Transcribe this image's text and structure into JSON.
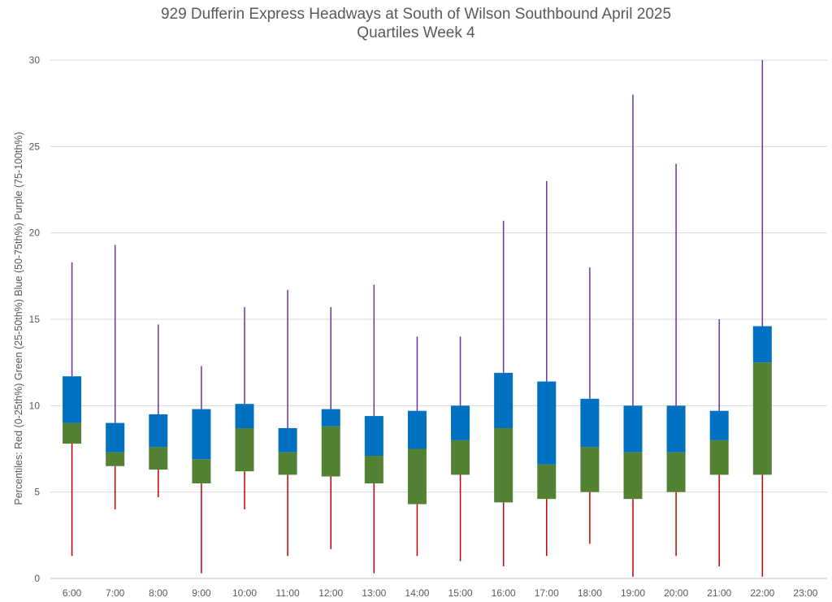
{
  "chart_data": {
    "type": "box",
    "title": "929 Dufferin Express Headways at South of Wilson Southbound April 2025",
    "subtitle": "Quartiles Week 4",
    "ylabel": "Percentiles:  Red (0-25th%)  Green (25-50th%)  Blue (50-75th%)  Purple (75-100th%)",
    "ylim": [
      0,
      30
    ],
    "yticks": [
      "0",
      "5",
      "10",
      "15",
      "20",
      "25",
      "30"
    ],
    "grid": true,
    "colors": {
      "min_to_q1": "#c00000",
      "q1_to_median": "#548235",
      "median_to_q3": "#0070c0",
      "q3_to_max": "#7030a0"
    },
    "categories": [
      "6:00",
      "7:00",
      "8:00",
      "9:00",
      "10:00",
      "11:00",
      "12:00",
      "13:00",
      "14:00",
      "15:00",
      "16:00",
      "17:00",
      "18:00",
      "19:00",
      "20:00",
      "21:00",
      "22:00",
      "23:00"
    ],
    "series": [
      {
        "min": 1.3,
        "q1": 7.8,
        "median": 9.0,
        "q3": 11.7,
        "max": 18.3
      },
      {
        "min": 4.0,
        "q1": 6.5,
        "median": 7.3,
        "q3": 9.0,
        "max": 19.3
      },
      {
        "min": 4.7,
        "q1": 6.3,
        "median": 7.6,
        "q3": 9.5,
        "max": 14.7
      },
      {
        "min": 0.3,
        "q1": 5.5,
        "median": 6.9,
        "q3": 9.8,
        "max": 12.3
      },
      {
        "min": 4.0,
        "q1": 6.2,
        "median": 8.7,
        "q3": 10.1,
        "max": 15.7
      },
      {
        "min": 1.3,
        "q1": 6.0,
        "median": 7.3,
        "q3": 8.7,
        "max": 16.7
      },
      {
        "min": 1.7,
        "q1": 5.9,
        "median": 8.8,
        "q3": 9.8,
        "max": 15.7
      },
      {
        "min": 0.3,
        "q1": 5.5,
        "median": 7.1,
        "q3": 9.4,
        "max": 17.0
      },
      {
        "min": 1.3,
        "q1": 4.3,
        "median": 7.5,
        "q3": 9.7,
        "max": 14.0
      },
      {
        "min": 1.0,
        "q1": 6.0,
        "median": 8.0,
        "q3": 10.0,
        "max": 14.0
      },
      {
        "min": 0.7,
        "q1": 4.4,
        "median": 8.7,
        "q3": 11.9,
        "max": 20.7
      },
      {
        "min": 1.3,
        "q1": 4.6,
        "median": 6.6,
        "q3": 11.4,
        "max": 23.0
      },
      {
        "min": 2.0,
        "q1": 5.0,
        "median": 7.6,
        "q3": 10.4,
        "max": 18.0
      },
      {
        "min": 0.1,
        "q1": 4.6,
        "median": 7.3,
        "q3": 10.0,
        "max": 28.0
      },
      {
        "min": 1.3,
        "q1": 5.0,
        "median": 7.3,
        "q3": 10.0,
        "max": 24.0
      },
      {
        "min": 0.7,
        "q1": 6.0,
        "median": 8.0,
        "q3": 9.7,
        "max": 15.0
      },
      {
        "min": 0.1,
        "q1": 6.0,
        "median": 12.5,
        "q3": 14.6,
        "max": 30.0
      },
      null
    ]
  }
}
